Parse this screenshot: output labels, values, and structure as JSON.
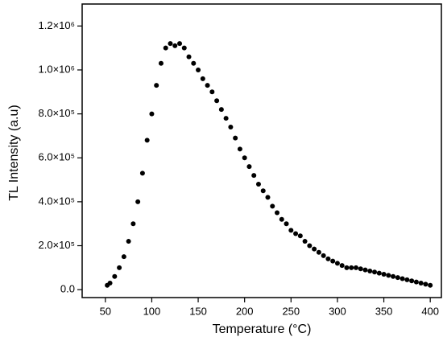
{
  "chart_data": {
    "type": "scatter",
    "xlabel": "Temperature (°C)",
    "ylabel": "TL Intensity (a.u)",
    "x": [
      52,
      55,
      60,
      65,
      70,
      75,
      80,
      85,
      90,
      95,
      100,
      105,
      110,
      115,
      120,
      125,
      130,
      135,
      140,
      145,
      150,
      155,
      160,
      165,
      170,
      175,
      180,
      185,
      190,
      195,
      200,
      205,
      210,
      215,
      220,
      225,
      230,
      235,
      240,
      245,
      250,
      255,
      260,
      265,
      270,
      275,
      280,
      285,
      290,
      295,
      300,
      305,
      310,
      315,
      320,
      325,
      330,
      335,
      340,
      345,
      350,
      355,
      360,
      365,
      370,
      375,
      380,
      385,
      390,
      395,
      400
    ],
    "series": [
      {
        "color": "#000000",
        "values": [
          20000,
          30000,
          60000,
          100000,
          150000,
          220000,
          300000,
          400000,
          530000,
          680000,
          800000,
          930000,
          1030000,
          1100000,
          1120000,
          1110000,
          1120000,
          1100000,
          1060000,
          1030000,
          1000000,
          960000,
          930000,
          900000,
          860000,
          820000,
          780000,
          740000,
          690000,
          640000,
          600000,
          560000,
          520000,
          480000,
          450000,
          420000,
          380000,
          350000,
          320000,
          300000,
          270000,
          255000,
          245000,
          220000,
          200000,
          185000,
          170000,
          155000,
          140000,
          130000,
          120000,
          110000,
          100000,
          100000,
          100000,
          95000,
          90000,
          85000,
          80000,
          75000,
          70000,
          65000,
          60000,
          55000,
          50000,
          45000,
          40000,
          35000,
          30000,
          25000,
          20000
        ]
      }
    ],
    "xlim": [
      25,
      412
    ],
    "ylim": [
      -36000,
      1300000
    ],
    "xticks": [
      50,
      100,
      150,
      200,
      250,
      300,
      350,
      400
    ],
    "yticks": [
      {
        "value": 0,
        "label": "0.0"
      },
      {
        "value": 200000,
        "label": "2.0×10⁵"
      },
      {
        "value": 400000,
        "label": "4.0×10⁵"
      },
      {
        "value": 600000,
        "label": "6.0×10⁵"
      },
      {
        "value": 800000,
        "label": "8.0×10⁵"
      },
      {
        "value": 1000000,
        "label": "1.0×10⁶"
      },
      {
        "value": 1200000,
        "label": "1.2×10⁶"
      }
    ]
  }
}
